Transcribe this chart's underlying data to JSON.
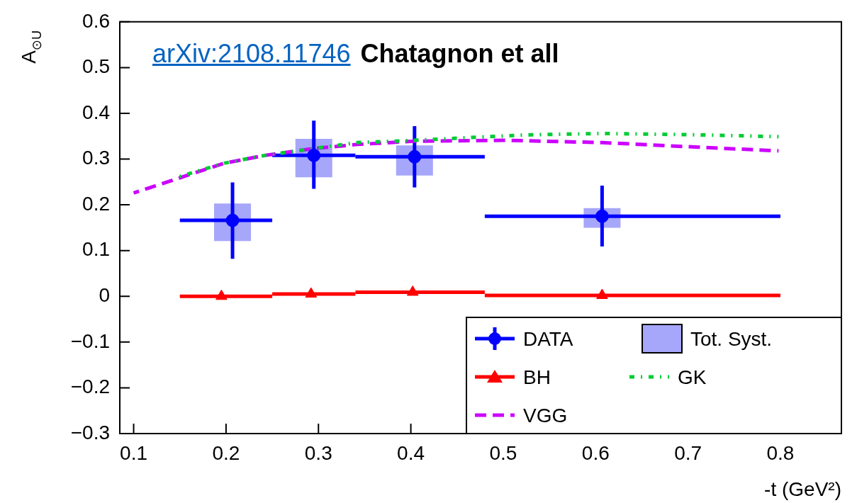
{
  "chart_data": {
    "type": "scatter",
    "xlabel": "-t (GeV²)",
    "ylabel": "A$_{⊙U}$",
    "annotations": [
      "arXiv:2108.11746",
      "Chatagnon et all"
    ],
    "xlim": [
      0.085,
      0.866
    ],
    "xticks": [
      0.1,
      0.2,
      0.3,
      0.4,
      0.5,
      0.6,
      0.7,
      0.8
    ],
    "ylim": [
      -0.3,
      0.6
    ],
    "yticks": [
      -0.3,
      -0.2,
      -0.1,
      0,
      0.1,
      0.2,
      0.3,
      0.4,
      0.5,
      0.6
    ],
    "grid": false,
    "legend": "bottom right",
    "series": [
      {
        "name": "DATA",
        "type": "scatter",
        "marker": "circle",
        "color": "#0000ff",
        "x": [
          0.207,
          0.295,
          0.404,
          0.607
        ],
        "values": [
          0.166,
          0.308,
          0.305,
          0.175
        ],
        "errors": [
          [
            0.082,
            0.249
          ],
          [
            0.235,
            0.384
          ],
          [
            0.238,
            0.372
          ],
          [
            0.109,
            0.242
          ]
        ],
        "xerrors": [
          [
            0.15,
            0.25
          ],
          [
            0.25,
            0.34
          ],
          [
            0.34,
            0.48
          ],
          [
            0.48,
            0.8
          ]
        ]
      },
      {
        "name": "Tot. Syst.",
        "type": "bar",
        "color": "#a6a6fa",
        "x": [
          0.207,
          0.295,
          0.404,
          0.607
        ],
        "base": [
          0.121,
          0.26,
          0.264,
          0.15
        ],
        "values": [
          0.082,
          0.084,
          0.066,
          0.043
        ]
      },
      {
        "name": "BH",
        "type": "scatter",
        "marker": "triangle",
        "color": "#ff0000",
        "x": [
          0.195,
          0.292,
          0.402,
          0.607
        ],
        "values": [
          0.0,
          0.005,
          0.009,
          0.002
        ],
        "xerrors": [
          [
            0.15,
            0.25
          ],
          [
            0.25,
            0.34
          ],
          [
            0.34,
            0.48
          ],
          [
            0.48,
            0.8
          ]
        ]
      },
      {
        "name": "GK",
        "type": "line",
        "marker": "none",
        "line_style": "dotted",
        "color": "#00cc33",
        "x": [
          0.15,
          0.198,
          0.242,
          0.295,
          0.342,
          0.404,
          0.504,
          0.53,
          0.607,
          0.711,
          0.798
        ],
        "values": [
          0.262,
          0.291,
          0.308,
          0.323,
          0.336,
          0.341,
          0.351,
          0.353,
          0.356,
          0.353,
          0.349
        ]
      },
      {
        "name": "VGG",
        "type": "line",
        "marker": "none",
        "line_style": "dashed",
        "color": "#cc00ff",
        "x": [
          0.1,
          0.15,
          0.198,
          0.242,
          0.295,
          0.342,
          0.404,
          0.504,
          0.607,
          0.711,
          0.798
        ],
        "values": [
          0.226,
          0.259,
          0.291,
          0.308,
          0.323,
          0.332,
          0.339,
          0.341,
          0.336,
          0.326,
          0.318
        ]
      }
    ]
  }
}
